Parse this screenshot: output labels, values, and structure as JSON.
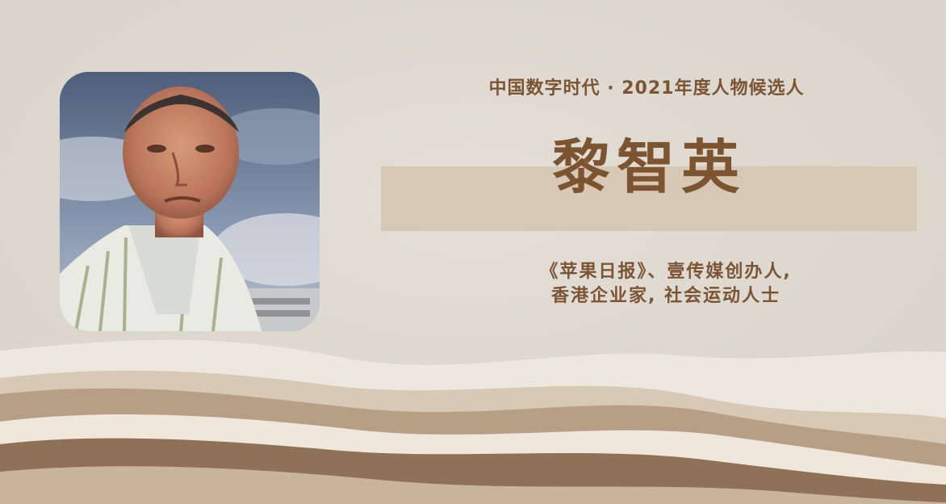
{
  "header": {
    "subtitle": "中国数字时代 · 2021年度人物候选人"
  },
  "person": {
    "name": "黎智英",
    "description_line1": "《苹果日报》、壹传媒创办人,",
    "description_line2": "香港企业家, 社会运动人士"
  },
  "colors": {
    "background": "#e0dbd2",
    "accent_text": "#7b5533",
    "name_band": "#d6c8b5",
    "wave_light": "#ece8e0",
    "wave_mid": "#b79f86",
    "wave_dark": "#8f7158"
  }
}
